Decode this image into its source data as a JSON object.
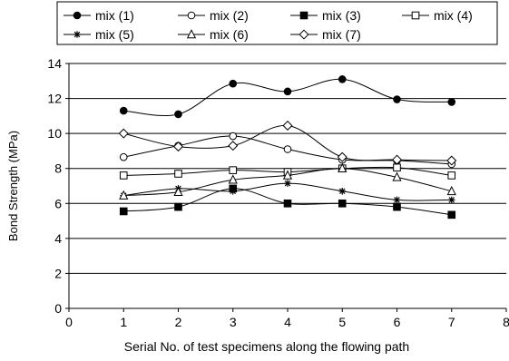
{
  "chart_data": {
    "type": "line",
    "xlabel": "Serial No. of test specimens along the flowing path",
    "ylabel": "Bond Strength (MPa)",
    "xlim": [
      0,
      8
    ],
    "ylim": [
      0,
      14
    ],
    "x_ticks": [
      "0",
      "1",
      "2",
      "3",
      "4",
      "5",
      "6",
      "7",
      "8"
    ],
    "y_ticks": [
      "0",
      "2",
      "4",
      "6",
      "8",
      "10",
      "12",
      "14"
    ],
    "grid": "horizontal",
    "legend_position": "top",
    "x": [
      1,
      2,
      3,
      4,
      5,
      6,
      7
    ],
    "series": [
      {
        "name": "mix (1)",
        "marker": "filled-circle",
        "values": [
          11.3,
          11.1,
          12.85,
          12.4,
          13.1,
          11.95,
          11.8
        ]
      },
      {
        "name": "mix (2)",
        "marker": "open-circle",
        "values": [
          8.65,
          9.3,
          9.85,
          9.1,
          8.5,
          8.45,
          8.25
        ]
      },
      {
        "name": "mix (3)",
        "marker": "filled-square",
        "values": [
          5.55,
          5.8,
          6.85,
          6.0,
          6.0,
          5.8,
          5.35
        ]
      },
      {
        "name": "mix (4)",
        "marker": "open-square",
        "values": [
          7.6,
          7.7,
          7.9,
          7.8,
          8.0,
          8.05,
          7.6
        ]
      },
      {
        "name": "mix (5)",
        "marker": "star",
        "values": [
          6.45,
          6.85,
          6.7,
          7.15,
          6.7,
          6.2,
          6.2
        ]
      },
      {
        "name": "mix (6)",
        "marker": "open-triangle",
        "values": [
          6.45,
          6.65,
          7.35,
          7.6,
          8.0,
          7.5,
          6.7
        ]
      },
      {
        "name": "mix (7)",
        "marker": "open-diamond",
        "values": [
          10.0,
          9.25,
          9.3,
          10.45,
          8.65,
          8.5,
          8.45
        ]
      }
    ]
  }
}
